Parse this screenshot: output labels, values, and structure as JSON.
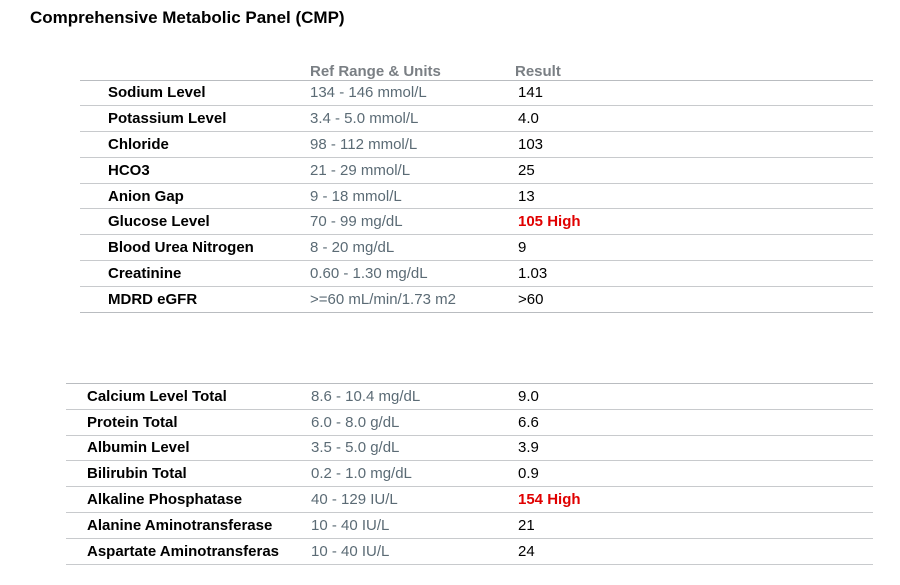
{
  "title": "Comprehensive Metabolic Panel (CMP)",
  "headers": {
    "ref_range": "Ref Range & Units",
    "result": "Result"
  },
  "panel1": [
    {
      "name": "Sodium Level",
      "ref": "134 - 146 mmol/L",
      "result": "141",
      "flag": "normal"
    },
    {
      "name": "Potassium Level",
      "ref": "3.4 - 5.0 mmol/L",
      "result": "4.0",
      "flag": "normal"
    },
    {
      "name": "Chloride",
      "ref": "98 - 112 mmol/L",
      "result": "103",
      "flag": "normal"
    },
    {
      "name": "HCO3",
      "ref": "21 - 29 mmol/L",
      "result": "25",
      "flag": "normal"
    },
    {
      "name": "Anion Gap",
      "ref": "9 - 18 mmol/L",
      "result": "13",
      "flag": "normal"
    },
    {
      "name": "Glucose Level",
      "ref": "70 - 99 mg/dL",
      "result": "105 High",
      "flag": "high"
    },
    {
      "name": "Blood Urea Nitrogen",
      "ref": "8 - 20 mg/dL",
      "result": "9",
      "flag": "normal"
    },
    {
      "name": "Creatinine",
      "ref": "0.60 - 1.30 mg/dL",
      "result": "1.03",
      "flag": "normal"
    },
    {
      "name": "MDRD eGFR",
      "ref": ">=60 mL/min/1.73 m2",
      "result": ">60",
      "flag": "normal"
    }
  ],
  "panel2": [
    {
      "name": "Calcium Level Total",
      "ref": "8.6 - 10.4 mg/dL",
      "result": "9.0",
      "flag": "normal"
    },
    {
      "name": "Protein Total",
      "ref": "6.0 - 8.0 g/dL",
      "result": "6.6",
      "flag": "normal"
    },
    {
      "name": "Albumin Level",
      "ref": "3.5 - 5.0 g/dL",
      "result": "3.9",
      "flag": "normal"
    },
    {
      "name": "Bilirubin Total",
      "ref": "0.2 - 1.0 mg/dL",
      "result": "0.9",
      "flag": "normal"
    },
    {
      "name": "Alkaline Phosphatase",
      "ref": "40 - 129 IU/L",
      "result": "154 High",
      "flag": "high"
    },
    {
      "name": "Alanine Aminotransferase",
      "ref": "10 - 40 IU/L",
      "result": "21",
      "flag": "normal"
    },
    {
      "name": "Aspartate Aminotransferas",
      "ref": "10 - 40 IU/L",
      "result": "24",
      "flag": "normal"
    }
  ],
  "colors": {
    "high": "#e00000",
    "reference_text": "#5b6b75",
    "header_text": "#7a7f84"
  }
}
